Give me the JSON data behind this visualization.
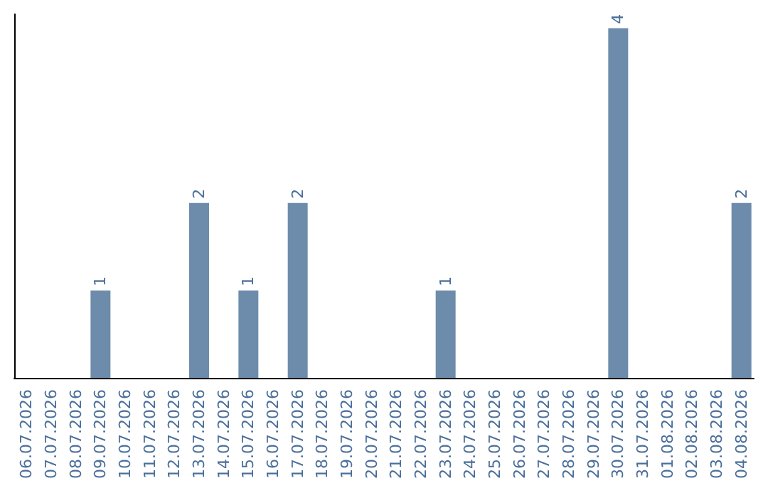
{
  "chart_data": {
    "type": "bar",
    "categories": [
      "06.07.2026",
      "07.07.2026",
      "08.07.2026",
      "09.07.2026",
      "10.07.2026",
      "11.07.2026",
      "12.07.2026",
      "13.07.2026",
      "14.07.2026",
      "15.07.2026",
      "16.07.2026",
      "17.07.2026",
      "18.07.2026",
      "19.07.2026",
      "20.07.2026",
      "21.07.2026",
      "22.07.2026",
      "23.07.2026",
      "24.07.2026",
      "25.07.2026",
      "26.07.2026",
      "27.07.2026",
      "28.07.2026",
      "29.07.2026",
      "30.07.2026",
      "31.07.2026",
      "01.08.2026",
      "02.08.2026",
      "03.08.2026",
      "04.08.2026"
    ],
    "values": [
      0,
      0,
      0,
      1,
      0,
      0,
      0,
      2,
      0,
      1,
      0,
      2,
      0,
      0,
      0,
      0,
      0,
      1,
      0,
      0,
      0,
      0,
      0,
      0,
      4,
      0,
      0,
      0,
      0,
      2
    ],
    "value_labels": [
      null,
      null,
      null,
      "1",
      null,
      null,
      null,
      "2",
      null,
      "1",
      null,
      "2",
      null,
      null,
      null,
      null,
      null,
      "1",
      null,
      null,
      null,
      null,
      null,
      null,
      "4",
      null,
      null,
      null,
      null,
      "2"
    ],
    "color": "#6d8cab",
    "tick_labels": "x"
  }
}
